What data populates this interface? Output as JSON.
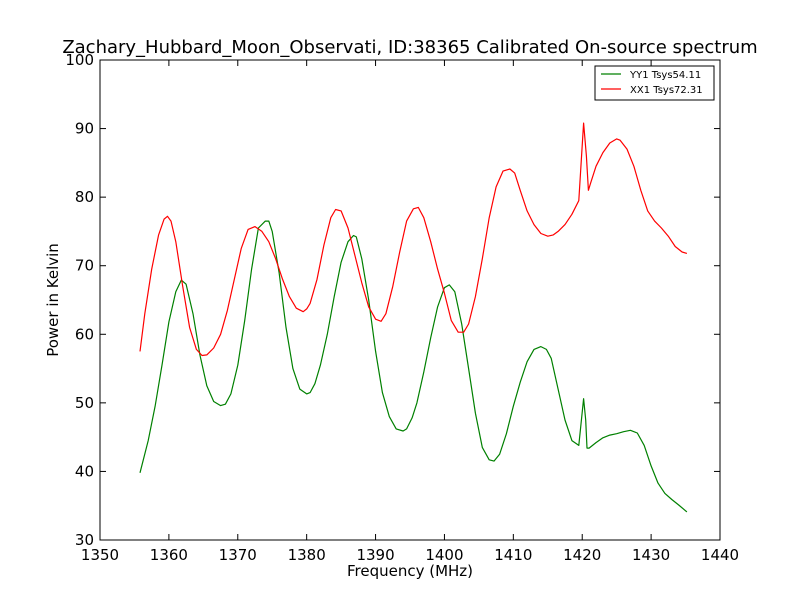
{
  "chart_data": {
    "type": "line",
    "title": "Zachary_Hubbard_Moon_Observati, ID:38365 Calibrated On-source spectrum",
    "xlabel": "Frequency (MHz)",
    "ylabel": "Power in Kelvin",
    "xlim": [
      1350,
      1440
    ],
    "ylim": [
      30,
      100
    ],
    "xticks": [
      1350,
      1360,
      1370,
      1380,
      1390,
      1400,
      1410,
      1420,
      1430,
      1440
    ],
    "yticks": [
      30,
      40,
      50,
      60,
      70,
      80,
      90,
      100
    ],
    "grid": false,
    "legend_position": "top-right",
    "series": [
      {
        "name": "YY1 Tsys54.11",
        "color": "#008000",
        "x": [
          1355.8,
          1357.0,
          1358.0,
          1359.0,
          1360.0,
          1361.0,
          1361.8,
          1362.5,
          1363.5,
          1364.5,
          1365.5,
          1366.5,
          1367.5,
          1368.2,
          1369.0,
          1370.0,
          1371.0,
          1372.0,
          1373.0,
          1374.0,
          1374.5,
          1375.0,
          1376.0,
          1377.0,
          1378.0,
          1379.0,
          1380.0,
          1380.5,
          1381.2,
          1382.0,
          1383.0,
          1384.0,
          1385.0,
          1386.0,
          1386.8,
          1387.2,
          1388.0,
          1389.0,
          1390.0,
          1391.0,
          1392.0,
          1393.0,
          1394.0,
          1394.5,
          1395.3,
          1396.0,
          1397.0,
          1398.0,
          1399.0,
          1400.0,
          1400.7,
          1401.5,
          1402.5,
          1403.5,
          1404.5,
          1405.5,
          1406.5,
          1407.2,
          1408.0,
          1409.0,
          1410.0,
          1411.0,
          1412.0,
          1413.0,
          1414.0,
          1414.8,
          1415.5,
          1416.5,
          1417.5,
          1418.5,
          1419.5,
          1420.2,
          1420.5,
          1420.7,
          1421.0,
          1422.0,
          1423.0,
          1424.0,
          1425.0,
          1426.0,
          1427.0,
          1428.0,
          1429.0,
          1430.0,
          1431.0,
          1432.0,
          1433.0,
          1434.0,
          1435.2
        ],
        "y": [
          39.8,
          44.5,
          49.5,
          55.5,
          61.8,
          66.2,
          67.9,
          67.3,
          63.0,
          57.0,
          52.5,
          50.2,
          49.6,
          49.8,
          51.3,
          55.5,
          62.0,
          69.5,
          75.5,
          76.5,
          76.5,
          75.0,
          69.0,
          61.0,
          55.0,
          52.0,
          51.3,
          51.5,
          52.8,
          55.5,
          60.0,
          65.5,
          70.5,
          73.5,
          74.4,
          74.2,
          71.0,
          65.0,
          57.5,
          51.5,
          48.0,
          46.2,
          45.9,
          46.2,
          47.8,
          50.0,
          54.5,
          59.5,
          64.0,
          66.8,
          67.2,
          66.2,
          61.5,
          55.0,
          48.5,
          43.5,
          41.7,
          41.5,
          42.5,
          45.5,
          49.5,
          53.0,
          56.0,
          57.8,
          58.2,
          57.8,
          56.5,
          52.0,
          47.5,
          44.5,
          43.8,
          50.6,
          47.5,
          43.4,
          43.4,
          44.2,
          44.9,
          45.3,
          45.5,
          45.8,
          46.0,
          45.6,
          43.8,
          40.8,
          38.3,
          36.8,
          35.9,
          35.1,
          34.1
        ]
      },
      {
        "name": "XX1 Tsys72.31",
        "color": "#ff0000",
        "x": [
          1355.8,
          1356.5,
          1357.5,
          1358.5,
          1359.3,
          1359.8,
          1360.3,
          1361.0,
          1362.0,
          1363.0,
          1364.0,
          1364.8,
          1365.5,
          1366.5,
          1367.5,
          1368.5,
          1369.5,
          1370.5,
          1371.5,
          1372.5,
          1373.5,
          1374.5,
          1375.5,
          1376.5,
          1377.5,
          1378.5,
          1379.5,
          1380.0,
          1380.5,
          1381.5,
          1382.5,
          1383.5,
          1384.2,
          1385.0,
          1386.0,
          1387.0,
          1388.0,
          1389.0,
          1390.0,
          1390.8,
          1391.5,
          1392.5,
          1393.5,
          1394.5,
          1395.5,
          1396.2,
          1397.0,
          1398.0,
          1399.0,
          1400.0,
          1401.0,
          1402.0,
          1402.8,
          1403.5,
          1404.5,
          1405.5,
          1406.5,
          1407.5,
          1408.5,
          1409.5,
          1410.2,
          1411.0,
          1412.0,
          1413.0,
          1414.0,
          1415.0,
          1415.8,
          1416.5,
          1417.5,
          1418.5,
          1419.5,
          1420.2,
          1420.6,
          1420.9,
          1421.2,
          1422.0,
          1423.0,
          1424.0,
          1425.0,
          1425.5,
          1426.5,
          1427.5,
          1428.5,
          1429.5,
          1430.5,
          1431.5,
          1432.5,
          1433.5,
          1434.5,
          1435.2
        ],
        "y": [
          57.5,
          63.0,
          69.5,
          74.5,
          76.8,
          77.2,
          76.5,
          73.5,
          67.0,
          61.0,
          57.8,
          56.9,
          57.0,
          58.0,
          60.0,
          63.5,
          68.0,
          72.5,
          75.3,
          75.7,
          75.0,
          73.5,
          71.0,
          68.0,
          65.5,
          63.8,
          63.3,
          63.7,
          64.5,
          68.0,
          73.0,
          77.0,
          78.2,
          78.0,
          75.5,
          71.5,
          67.5,
          64.0,
          62.2,
          61.9,
          63.0,
          67.0,
          72.0,
          76.5,
          78.3,
          78.5,
          77.0,
          73.5,
          69.5,
          66.0,
          62.0,
          60.3,
          60.3,
          61.5,
          65.5,
          71.0,
          77.0,
          81.5,
          83.8,
          84.1,
          83.5,
          81.0,
          78.0,
          76.0,
          74.7,
          74.3,
          74.5,
          75.0,
          76.0,
          77.5,
          79.5,
          90.8,
          86.0,
          81.0,
          82.0,
          84.5,
          86.5,
          87.9,
          88.5,
          88.3,
          87.0,
          84.5,
          81.0,
          78.0,
          76.5,
          75.5,
          74.3,
          72.8,
          72.0,
          71.8
        ]
      }
    ]
  }
}
